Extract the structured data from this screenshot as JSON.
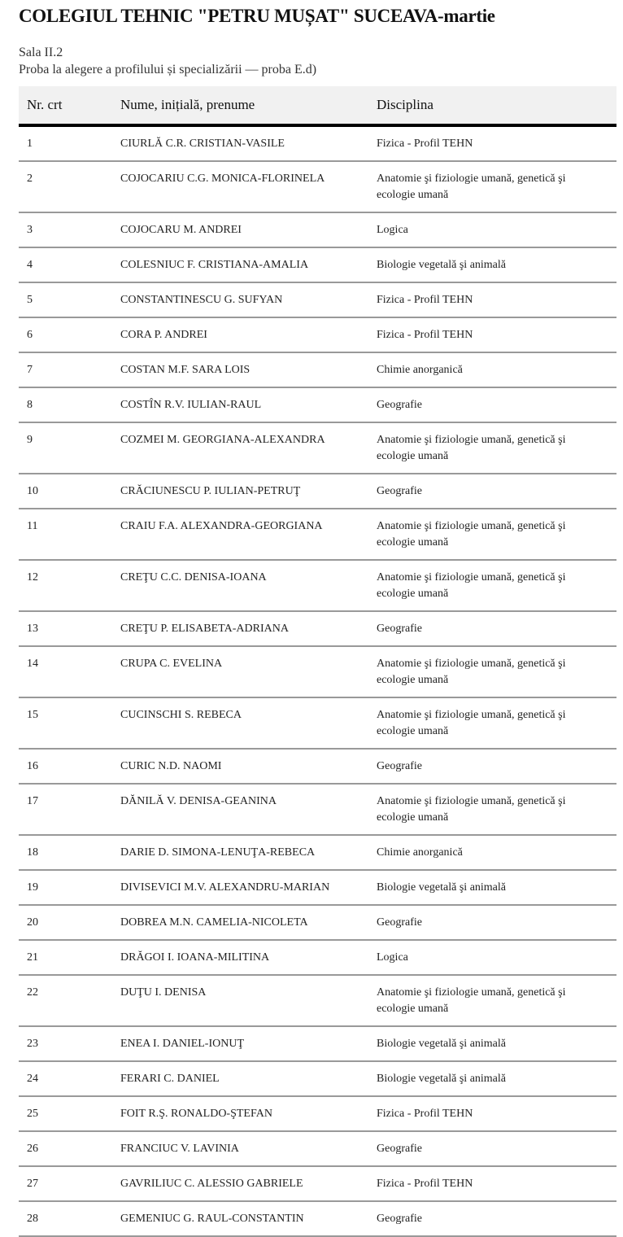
{
  "title": "COLEGIUL TEHNIC \"PETRU MUȘAT\" SUCEAVA-martie",
  "room": "Sala II.2",
  "exam": "Proba la alegere a profilului și specializării — proba E.d)",
  "table": {
    "headers": [
      "Nr. crt",
      "Nume, inițială, prenume",
      "Disciplina"
    ],
    "rows": [
      [
        "1",
        "CIURLĂ C.R. CRISTIAN-VASILE",
        "Fizica - Profil TEHN"
      ],
      [
        "2",
        "COJOCARIU C.G. MONICA-FLORINELA",
        "Anatomie şi fiziologie umană, genetică şi ecologie umană"
      ],
      [
        "3",
        "COJOCARU M. ANDREI",
        "Logica"
      ],
      [
        "4",
        "COLESNIUC F. CRISTIANA-AMALIA",
        "Biologie vegetală şi animală"
      ],
      [
        "5",
        "CONSTANTINESCU G. SUFYAN",
        "Fizica - Profil TEHN"
      ],
      [
        "6",
        "CORA P. ANDREI",
        "Fizica - Profil TEHN"
      ],
      [
        "7",
        "COSTAN M.F. SARA LOIS",
        "Chimie anorganică"
      ],
      [
        "8",
        "COSTÎN R.V. IULIAN-RAUL",
        "Geografie"
      ],
      [
        "9",
        "COZMEI M. GEORGIANA-ALEXANDRA",
        "Anatomie şi fiziologie umană, genetică şi ecologie umană"
      ],
      [
        "10",
        "CRĂCIUNESCU P. IULIAN-PETRUŢ",
        "Geografie"
      ],
      [
        "11",
        "CRAIU F.A. ALEXANDRA-GEORGIANA",
        "Anatomie şi fiziologie umană, genetică şi ecologie umană"
      ],
      [
        "12",
        "CREŢU C.C. DENISA-IOANA",
        "Anatomie şi fiziologie umană, genetică şi ecologie umană"
      ],
      [
        "13",
        "CREŢU P. ELISABETA-ADRIANA",
        "Geografie"
      ],
      [
        "14",
        "CRUPA C. EVELINA",
        "Anatomie şi fiziologie umană, genetică şi ecologie umană"
      ],
      [
        "15",
        "CUCINSCHI S. REBECA",
        "Anatomie şi fiziologie umană, genetică şi ecologie umană"
      ],
      [
        "16",
        "CURIC N.D. NAOMI",
        "Geografie"
      ],
      [
        "17",
        "DĂNILĂ V. DENISA-GEANINA",
        "Anatomie şi fiziologie umană, genetică şi ecologie umană"
      ],
      [
        "18",
        "DARIE D. SIMONA-LENUŢA-REBECA",
        "Chimie anorganică"
      ],
      [
        "19",
        "DIVISEVICI M.V. ALEXANDRU-MARIAN",
        "Biologie vegetală şi animală"
      ],
      [
        "20",
        "DOBREA M.N. CAMELIA-NICOLETA",
        "Geografie"
      ],
      [
        "21",
        "DRĂGOI I. IOANA-MILITINA",
        "Logica"
      ],
      [
        "22",
        "DUŢU I. DENISA",
        "Anatomie şi fiziologie umană, genetică şi ecologie umană"
      ],
      [
        "23",
        "ENEA I. DANIEL-IONUŢ",
        "Biologie vegetală şi animală"
      ],
      [
        "24",
        "FERARI C. DANIEL",
        "Biologie vegetală şi animală"
      ],
      [
        "25",
        "FOIT R.Ş. RONALDO-ŞTEFAN",
        "Fizica - Profil TEHN"
      ],
      [
        "26",
        "FRANCIUC V. LAVINIA",
        "Geografie"
      ],
      [
        "27",
        "GAVRILIUC C. ALESSIO GABRIELE",
        "Fizica - Profil TEHN"
      ],
      [
        "28",
        "GEMENIUC G. RAUL-CONSTANTIN",
        "Geografie"
      ]
    ]
  }
}
